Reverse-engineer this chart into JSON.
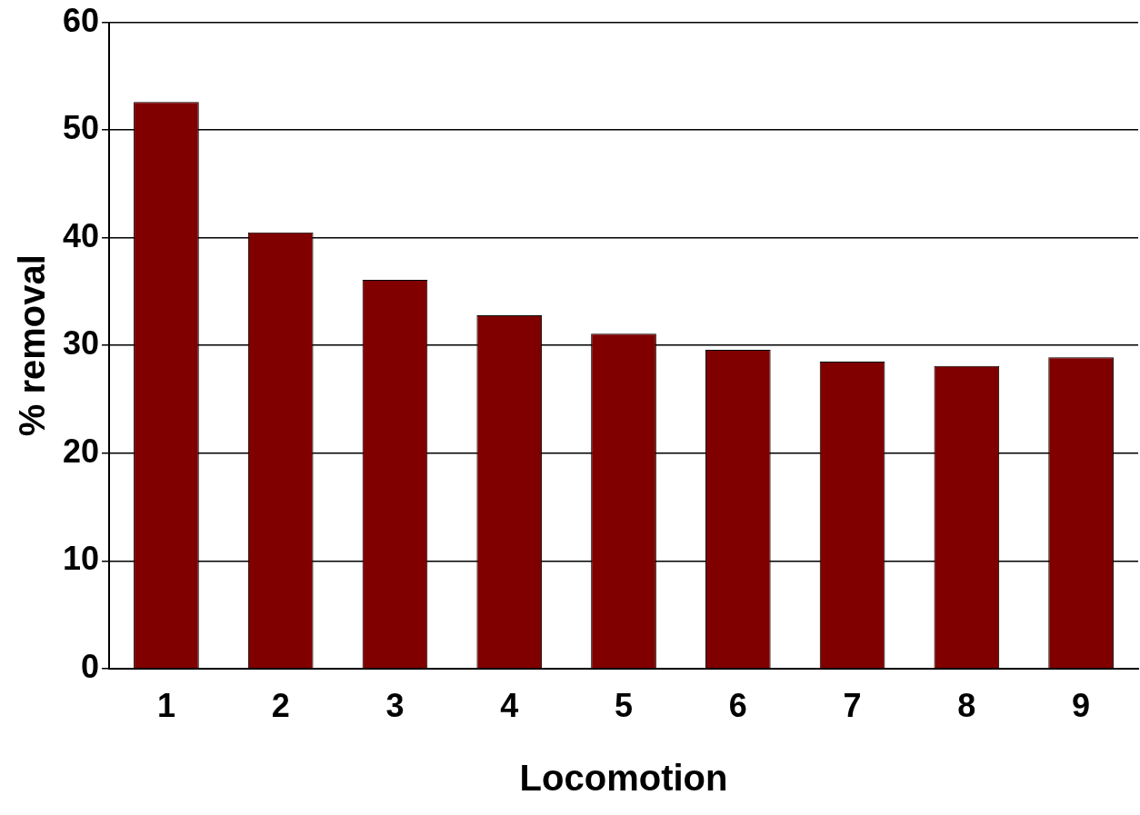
{
  "chart_data": {
    "type": "bar",
    "xlabel": "Locomotion",
    "ylabel": "% removal",
    "categories": [
      "1",
      "2",
      "3",
      "4",
      "5",
      "6",
      "7",
      "8",
      "9"
    ],
    "values": [
      52.6,
      40.5,
      36.1,
      32.8,
      31.1,
      29.6,
      28.5,
      28.1,
      28.9
    ],
    "color": "#800000",
    "ylim": [
      0,
      60
    ],
    "yticks": [
      0,
      10,
      20,
      30,
      40,
      50,
      60
    ],
    "grid": "y",
    "legend": false
  }
}
